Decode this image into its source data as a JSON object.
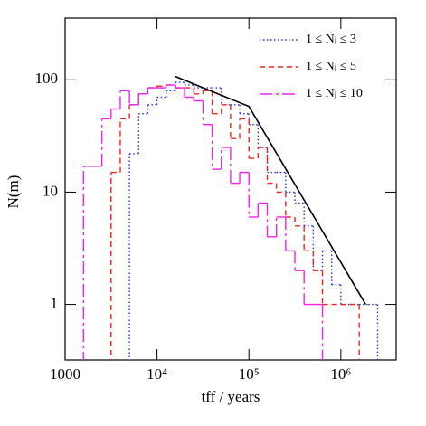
{
  "chart_data": {
    "type": "histogram",
    "x_label": "tff / years",
    "y_label": "N(m)",
    "log_x": true,
    "log_y": true,
    "xlim": [
      1000,
      4000000
    ],
    "ylim": [
      0.32,
      355
    ],
    "xticks": [
      1000,
      {
        "value": 10000,
        "label": "10⁴"
      },
      {
        "value": 100000,
        "label": "10⁵"
      },
      {
        "value": 1000000,
        "label": "10⁶"
      }
    ],
    "yticks": [
      1,
      10,
      100
    ],
    "legend": "top-right",
    "series": [
      {
        "name": "1 ≤ Nⱼ ≤ 3",
        "color": "#2233cc",
        "dash": "1.5,2.5",
        "bins": [
          5012,
          6310,
          7943,
          10000,
          12589,
          15849,
          19953,
          25119,
          31623,
          39811,
          50119,
          63096,
          79433,
          100000,
          125893,
          158489,
          199526,
          251189,
          316228,
          398107,
          501187,
          630957,
          794328,
          1000000,
          1258925,
          1584893,
          1995262,
          2511886
        ],
        "values": [
          22,
          50,
          60,
          70,
          80,
          95,
          90,
          85,
          85,
          85,
          60,
          60,
          50,
          40,
          25,
          15,
          15,
          10,
          8,
          5,
          2,
          3,
          1.5,
          1,
          1,
          1,
          1
        ]
      },
      {
        "name": "1 ≤ Nⱼ ≤ 5",
        "color": "#ee2222",
        "dash": "6,4",
        "bins": [
          3162,
          3981,
          5012,
          6310,
          7943,
          10000,
          12589,
          15849,
          19953,
          25119,
          31623,
          39811,
          50119,
          63096,
          79433,
          100000,
          125893,
          158489,
          199526,
          251189,
          316228,
          398107,
          501187,
          630957,
          794328,
          1000000,
          1258925,
          1584893
        ],
        "values": [
          15,
          45,
          60,
          75,
          85,
          88,
          90,
          85,
          85,
          75,
          80,
          50,
          60,
          30,
          45,
          20,
          25,
          12,
          10,
          6,
          5,
          3,
          2,
          1,
          1,
          1,
          1
        ]
      },
      {
        "name": "1 ≤ Nⱼ ≤ 10",
        "color": "#ee22ee",
        "dash": "14,4,3,4",
        "bins": [
          1585,
          1995,
          2512,
          3162,
          3981,
          5012,
          6310,
          7943,
          10000,
          12589,
          15849,
          19953,
          25119,
          31623,
          39811,
          50119,
          63096,
          79433,
          100000,
          125893,
          158489,
          199526,
          251189,
          316228,
          398107,
          501187,
          630957
        ],
        "values": [
          17,
          17,
          45,
          55,
          80,
          60,
          75,
          85,
          85,
          90,
          85,
          70,
          65,
          40,
          16,
          25,
          12,
          15,
          6,
          8,
          4,
          6,
          3,
          2,
          1,
          1
        ]
      }
    ],
    "fit_line": {
      "type": "line",
      "color": "#000000",
      "x": [
        15849,
        100000,
        1862000
      ],
      "values": [
        107,
        58,
        1
      ]
    }
  }
}
